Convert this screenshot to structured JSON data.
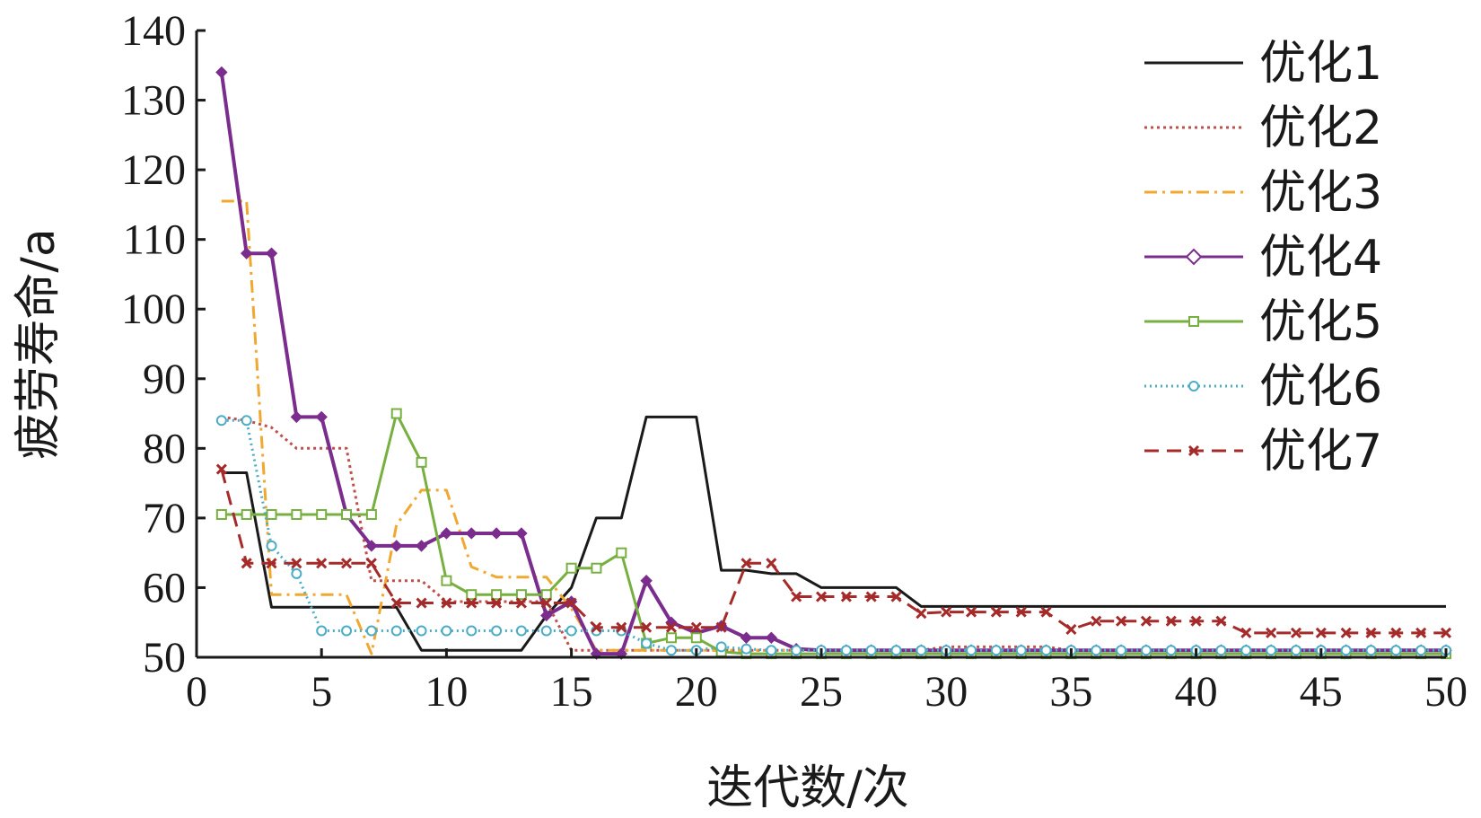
{
  "chart_data": {
    "type": "line",
    "title": "",
    "xlabel": "迭代数/次",
    "ylabel": "疲劳寿命/a",
    "xlim": [
      0,
      50
    ],
    "ylim": [
      50,
      140
    ],
    "xticks": [
      "0",
      "5",
      "10",
      "15",
      "20",
      "25",
      "30",
      "35",
      "40",
      "45",
      "50"
    ],
    "yticks": [
      "50",
      "60",
      "70",
      "80",
      "90",
      "100",
      "110",
      "120",
      "130",
      "140"
    ],
    "grid": false,
    "legend_position": "top-right",
    "x": [
      1,
      2,
      3,
      4,
      5,
      6,
      7,
      8,
      9,
      10,
      11,
      12,
      13,
      14,
      15,
      16,
      17,
      18,
      19,
      20,
      21,
      22,
      23,
      24,
      25,
      26,
      27,
      28,
      29,
      30,
      31,
      32,
      33,
      34,
      35,
      36,
      37,
      38,
      39,
      40,
      41,
      42,
      43,
      44,
      45,
      46,
      47,
      48,
      49,
      50
    ],
    "series": [
      {
        "name": "优化1",
        "color": "#1a1a1a",
        "dash": "",
        "marker": "none",
        "step": true,
        "values": [
          76.5,
          76.5,
          57.2,
          57.2,
          57.2,
          57.2,
          57.2,
          57.2,
          51.0,
          51.0,
          51.0,
          51.0,
          51.0,
          56.0,
          60.0,
          70.0,
          70.0,
          84.5,
          84.5,
          84.5,
          62.5,
          62.5,
          62.0,
          62.0,
          60.0,
          60.0,
          60.0,
          60.0,
          57.3,
          57.3,
          57.3,
          57.3,
          57.3,
          57.3,
          57.3,
          57.3,
          57.3,
          57.3,
          57.3,
          57.3,
          57.3,
          57.3,
          57.3,
          57.3,
          57.3,
          57.3,
          57.3,
          57.3,
          57.3,
          57.3
        ]
      },
      {
        "name": "优化2",
        "color": "#c0504d",
        "dash": "3,4",
        "marker": "none",
        "step": true,
        "values": [
          84.5,
          84.0,
          83.0,
          80.0,
          80.0,
          80.0,
          61.0,
          61.0,
          61.0,
          58.0,
          58.0,
          58.0,
          58.0,
          58.0,
          51.0,
          51.0,
          51.0,
          51.0,
          51.0,
          51.0,
          51.0,
          51.0,
          51.0,
          51.0,
          51.0,
          51.0,
          51.0,
          51.0,
          51.0,
          51.5,
          51.5,
          51.5,
          51.5,
          51.5,
          51.0,
          51.0,
          51.0,
          51.0,
          51.0,
          51.0,
          51.0,
          51.0,
          51.0,
          51.0,
          51.0,
          51.0,
          51.0,
          51.0,
          51.0,
          51.0
        ]
      },
      {
        "name": "优化3",
        "color": "#f0a830",
        "dash": "14,6,3,6",
        "marker": "none",
        "step": true,
        "values": [
          115.5,
          115.5,
          59.0,
          59.0,
          59.0,
          59.0,
          50.5,
          69.0,
          74.0,
          74.0,
          63.0,
          61.5,
          61.5,
          61.5,
          57.0,
          51.0,
          51.0,
          51.0,
          51.0,
          51.0,
          51.0,
          51.0,
          51.0,
          51.0,
          51.0,
          51.0,
          51.0,
          51.0,
          51.0,
          51.0,
          51.0,
          51.0,
          51.0,
          51.0,
          51.0,
          51.0,
          51.0,
          51.0,
          51.0,
          51.0,
          51.0,
          51.0,
          51.0,
          51.0,
          51.0,
          51.0,
          51.0,
          51.0,
          51.0,
          51.0
        ]
      },
      {
        "name": "优化4",
        "color": "#7b2d8e",
        "dash": "",
        "marker": "diamond",
        "step": false,
        "values": [
          134.0,
          108.0,
          108.0,
          84.5,
          84.5,
          70.5,
          66.0,
          66.0,
          66.0,
          67.8,
          67.8,
          67.8,
          67.8,
          56.0,
          58.0,
          50.5,
          50.5,
          61.0,
          55.0,
          53.5,
          54.5,
          52.8,
          52.8,
          51.2,
          51.0,
          51.0,
          51.0,
          51.0,
          51.0,
          51.0,
          51.0,
          51.0,
          51.0,
          51.0,
          51.0,
          51.0,
          51.0,
          51.0,
          51.0,
          51.0,
          51.0,
          51.0,
          51.0,
          51.0,
          51.0,
          51.0,
          51.0,
          51.0,
          51.0,
          51.0
        ]
      },
      {
        "name": "优化5",
        "color": "#77b041",
        "dash": "",
        "marker": "square",
        "step": false,
        "values": [
          70.5,
          70.5,
          70.5,
          70.5,
          70.5,
          70.5,
          70.5,
          85.0,
          78.0,
          61.0,
          59.0,
          59.0,
          59.0,
          59.0,
          62.8,
          62.8,
          65.0,
          52.0,
          52.8,
          52.8,
          50.8,
          50.5,
          50.5,
          50.5,
          50.5,
          50.5,
          50.5,
          50.5,
          50.5,
          50.5,
          50.5,
          50.5,
          50.5,
          50.5,
          50.5,
          50.5,
          50.5,
          50.5,
          50.5,
          50.5,
          50.5,
          50.5,
          50.5,
          50.5,
          50.5,
          50.5,
          50.5,
          50.5,
          50.5,
          50.5
        ]
      },
      {
        "name": "优化6",
        "color": "#4bacc6",
        "dash": "2,4",
        "marker": "circle",
        "step": false,
        "values": [
          84.0,
          84.0,
          66.0,
          62.0,
          53.8,
          53.8,
          53.8,
          53.8,
          53.8,
          53.8,
          53.8,
          53.8,
          53.8,
          53.8,
          53.8,
          53.8,
          53.8,
          52.0,
          51.0,
          51.0,
          51.5,
          51.2,
          51.0,
          51.0,
          51.0,
          51.0,
          51.0,
          51.0,
          51.0,
          51.0,
          51.0,
          51.0,
          51.0,
          51.0,
          51.0,
          51.0,
          51.0,
          51.0,
          51.0,
          51.0,
          51.0,
          51.0,
          51.0,
          51.0,
          51.0,
          51.0,
          51.0,
          51.0,
          51.0,
          51.0
        ]
      },
      {
        "name": "优化7",
        "color": "#a52a2a",
        "dash": "16,9",
        "marker": "x",
        "step": false,
        "values": [
          77.0,
          63.5,
          63.5,
          63.5,
          63.5,
          63.5,
          63.5,
          57.8,
          57.8,
          57.8,
          57.8,
          57.8,
          57.8,
          57.8,
          57.8,
          54.3,
          54.3,
          54.3,
          54.3,
          54.3,
          54.3,
          63.5,
          63.5,
          58.7,
          58.7,
          58.7,
          58.7,
          58.7,
          56.3,
          56.5,
          56.5,
          56.5,
          56.5,
          56.5,
          54.0,
          55.2,
          55.2,
          55.2,
          55.2,
          55.2,
          55.2,
          53.5,
          53.5,
          53.5,
          53.5,
          53.5,
          53.5,
          53.5,
          53.5,
          53.5
        ]
      }
    ]
  }
}
